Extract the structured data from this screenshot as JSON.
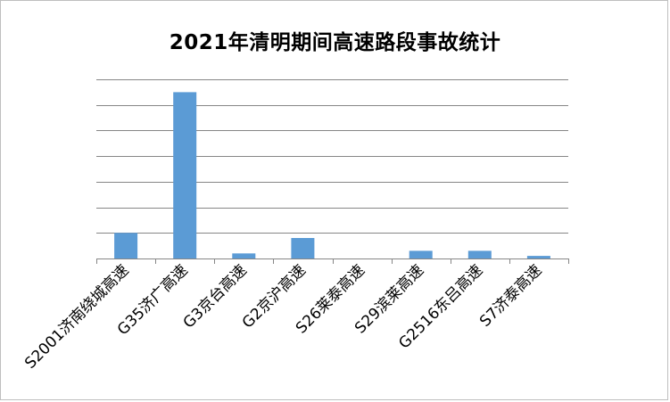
{
  "chart_data": {
    "type": "bar",
    "title": "2021年清明期间高速路段事故统计",
    "xlabel": "",
    "ylabel": "",
    "categories": [
      "S2001济南绕城高速",
      "G35济广高速",
      "G3京台高速",
      "G2京沪高速",
      "S26莱泰高速",
      "S29滨莱高速",
      "G2516东吕高速",
      "S7济泰高速"
    ],
    "values": [
      10,
      65,
      2,
      8,
      0,
      3,
      3,
      1
    ],
    "ylim": [
      0,
      70
    ],
    "grid": true,
    "legend": "none",
    "colors": {
      "bar": "#5b9bd5",
      "grid": "#868686",
      "axis": "#868686"
    }
  }
}
